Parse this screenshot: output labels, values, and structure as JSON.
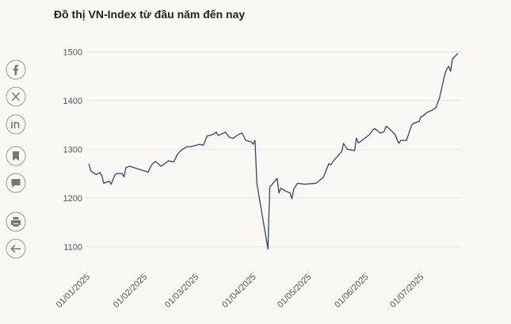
{
  "chart_data": {
    "type": "line",
    "title": "Đồ thị VN-Index từ đầu năm đến nay",
    "x": [
      "02/01/2025",
      "03/01/2025",
      "06/01/2025",
      "08/01/2025",
      "09/01/2025",
      "10/01/2025",
      "13/01/2025",
      "14/01/2025",
      "16/01/2025",
      "17/01/2025",
      "20/01/2025",
      "21/01/2025",
      "22/01/2025",
      "24/01/2025",
      "03/02/2025",
      "05/02/2025",
      "07/02/2025",
      "10/02/2025",
      "12/02/2025",
      "14/02/2025",
      "17/02/2025",
      "19/02/2025",
      "21/02/2025",
      "24/02/2025",
      "26/02/2025",
      "28/02/2025",
      "03/03/2025",
      "05/03/2025",
      "07/03/2025",
      "10/03/2025",
      "12/03/2025",
      "13/03/2025",
      "17/03/2025",
      "19/03/2025",
      "21/03/2025",
      "24/03/2025",
      "26/03/2025",
      "28/03/2025",
      "31/03/2025",
      "01/04/2025",
      "02/04/2025",
      "03/04/2025",
      "09/04/2025",
      "10/04/2025",
      "14/04/2025",
      "15/04/2025",
      "16/04/2025",
      "18/04/2025",
      "21/04/2025",
      "22/04/2025",
      "23/04/2025",
      "25/04/2025",
      "29/04/2025",
      "05/05/2025",
      "09/05/2025",
      "12/05/2025",
      "13/05/2025",
      "15/05/2025",
      "19/05/2025",
      "20/05/2025",
      "22/05/2025",
      "26/05/2025",
      "27/05/2025",
      "28/05/2025",
      "30/05/2025",
      "03/06/2025",
      "05/06/2025",
      "06/06/2025",
      "09/06/2025",
      "11/06/2025",
      "12/06/2025",
      "13/06/2025",
      "17/06/2025",
      "18/06/2025",
      "19/06/2025",
      "20/06/2025",
      "23/06/2025",
      "24/06/2025",
      "26/06/2025",
      "27/06/2025",
      "30/06/2025",
      "01/07/2025",
      "02/07/2025",
      "04/07/2025",
      "07/07/2025",
      "09/07/2025",
      "10/07/2025",
      "11/07/2025",
      "14/07/2025",
      "15/07/2025",
      "16/07/2025",
      "17/07/2025",
      "18/07/2025",
      "21/07/2025"
    ],
    "values": [
      1270,
      1255,
      1248,
      1252,
      1245,
      1230,
      1234,
      1228,
      1247,
      1250,
      1250,
      1243,
      1262,
      1265,
      1253,
      1268,
      1275,
      1265,
      1270,
      1276,
      1274,
      1290,
      1298,
      1305,
      1305,
      1307,
      1310,
      1308,
      1327,
      1330,
      1335,
      1328,
      1335,
      1325,
      1322,
      1330,
      1333,
      1318,
      1315,
      1310,
      1318,
      1230,
      1095,
      1222,
      1240,
      1210,
      1220,
      1215,
      1210,
      1198,
      1218,
      1230,
      1228,
      1230,
      1242,
      1270,
      1268,
      1278,
      1295,
      1312,
      1300,
      1297,
      1323,
      1313,
      1318,
      1330,
      1340,
      1342,
      1333,
      1336,
      1347,
      1345,
      1330,
      1320,
      1312,
      1318,
      1318,
      1328,
      1350,
      1353,
      1357,
      1367,
      1368,
      1375,
      1380,
      1385,
      1395,
      1405,
      1455,
      1465,
      1470,
      1460,
      1485,
      1497
    ],
    "color": "#2b4a6f",
    "xlim": [
      "01/01/2025",
      "21/07/2025"
    ],
    "xticks": [
      "01/01/2025",
      "01/02/2025",
      "01/03/2025",
      "01/04/2025",
      "01/05/2025",
      "01/06/2025",
      "01/07/2025"
    ],
    "ylim": [
      1050,
      1525
    ],
    "yticks": [
      1100,
      1200,
      1300,
      1400,
      1500
    ],
    "grid": true
  }
}
